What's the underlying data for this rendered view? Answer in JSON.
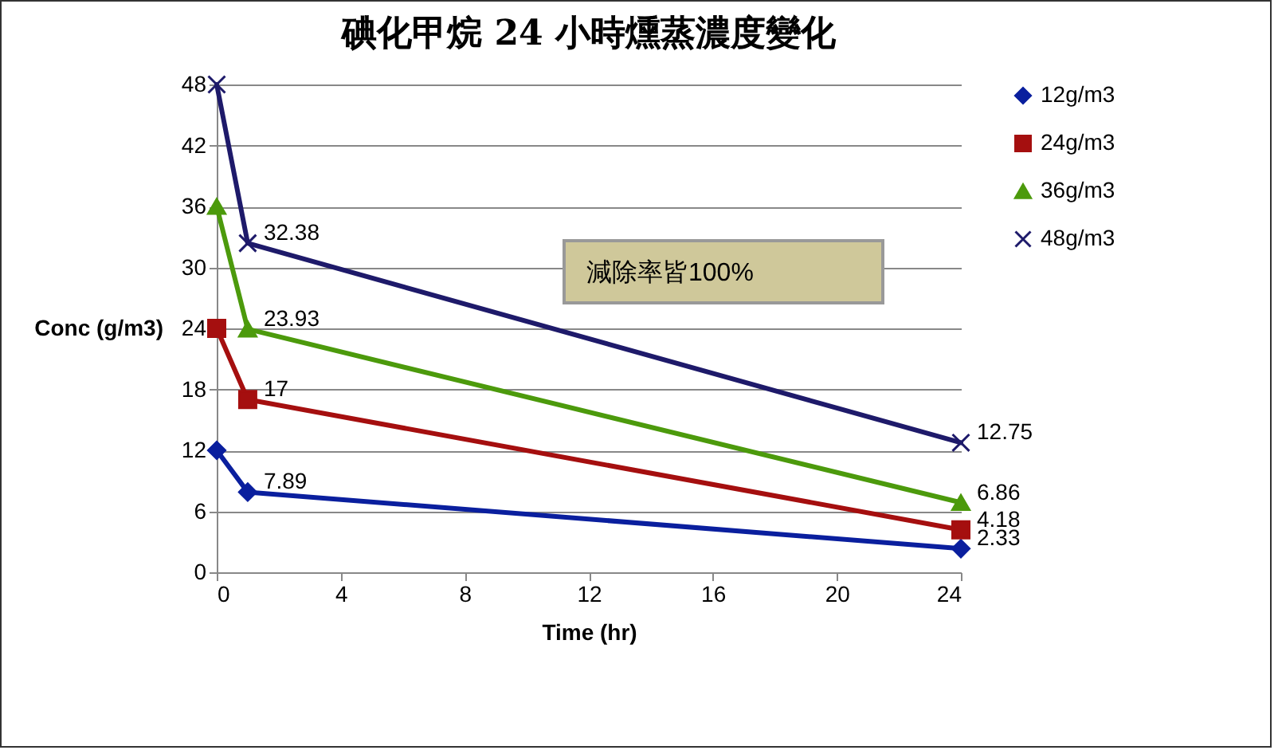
{
  "chart_data": {
    "type": "line",
    "title": "碘化甲烷 24 小時燻蒸濃度變化",
    "xlabel": "Time (hr)",
    "ylabel": "Conc (g/m3)",
    "annotations": [
      "減除率皆100%"
    ],
    "xlim": [
      0,
      24
    ],
    "xticks": [
      0,
      4,
      8,
      12,
      16,
      20,
      24
    ],
    "ylim": [
      0,
      48
    ],
    "yticks": [
      0,
      6,
      12,
      18,
      24,
      30,
      36,
      42,
      48
    ],
    "grid": "y",
    "legend": "right",
    "series": [
      {
        "name": "12g/m3",
        "color": "#0a1f9e",
        "marker": "diamond",
        "x": [
          0,
          1,
          24
        ],
        "values": [
          12,
          7.89,
          2.33
        ],
        "value_labels": [
          null,
          "7.89",
          "2.33"
        ]
      },
      {
        "name": "24g/m3",
        "color": "#a50f0f",
        "marker": "square",
        "x": [
          0,
          1,
          24
        ],
        "values": [
          24,
          17,
          4.18
        ],
        "value_labels": [
          null,
          "17",
          "4.18"
        ]
      },
      {
        "name": "36g/m3",
        "color": "#4c9a0c",
        "marker": "triangle",
        "x": [
          0,
          1,
          24
        ],
        "values": [
          36,
          23.93,
          6.86
        ],
        "value_labels": [
          null,
          "23.93",
          "6.86"
        ]
      },
      {
        "name": "48g/m3",
        "color": "#1e1a6a",
        "marker": "cross",
        "x": [
          0,
          1,
          24
        ],
        "values": [
          48,
          32.38,
          12.75
        ],
        "value_labels": [
          null,
          "32.38",
          "12.75"
        ]
      }
    ]
  }
}
